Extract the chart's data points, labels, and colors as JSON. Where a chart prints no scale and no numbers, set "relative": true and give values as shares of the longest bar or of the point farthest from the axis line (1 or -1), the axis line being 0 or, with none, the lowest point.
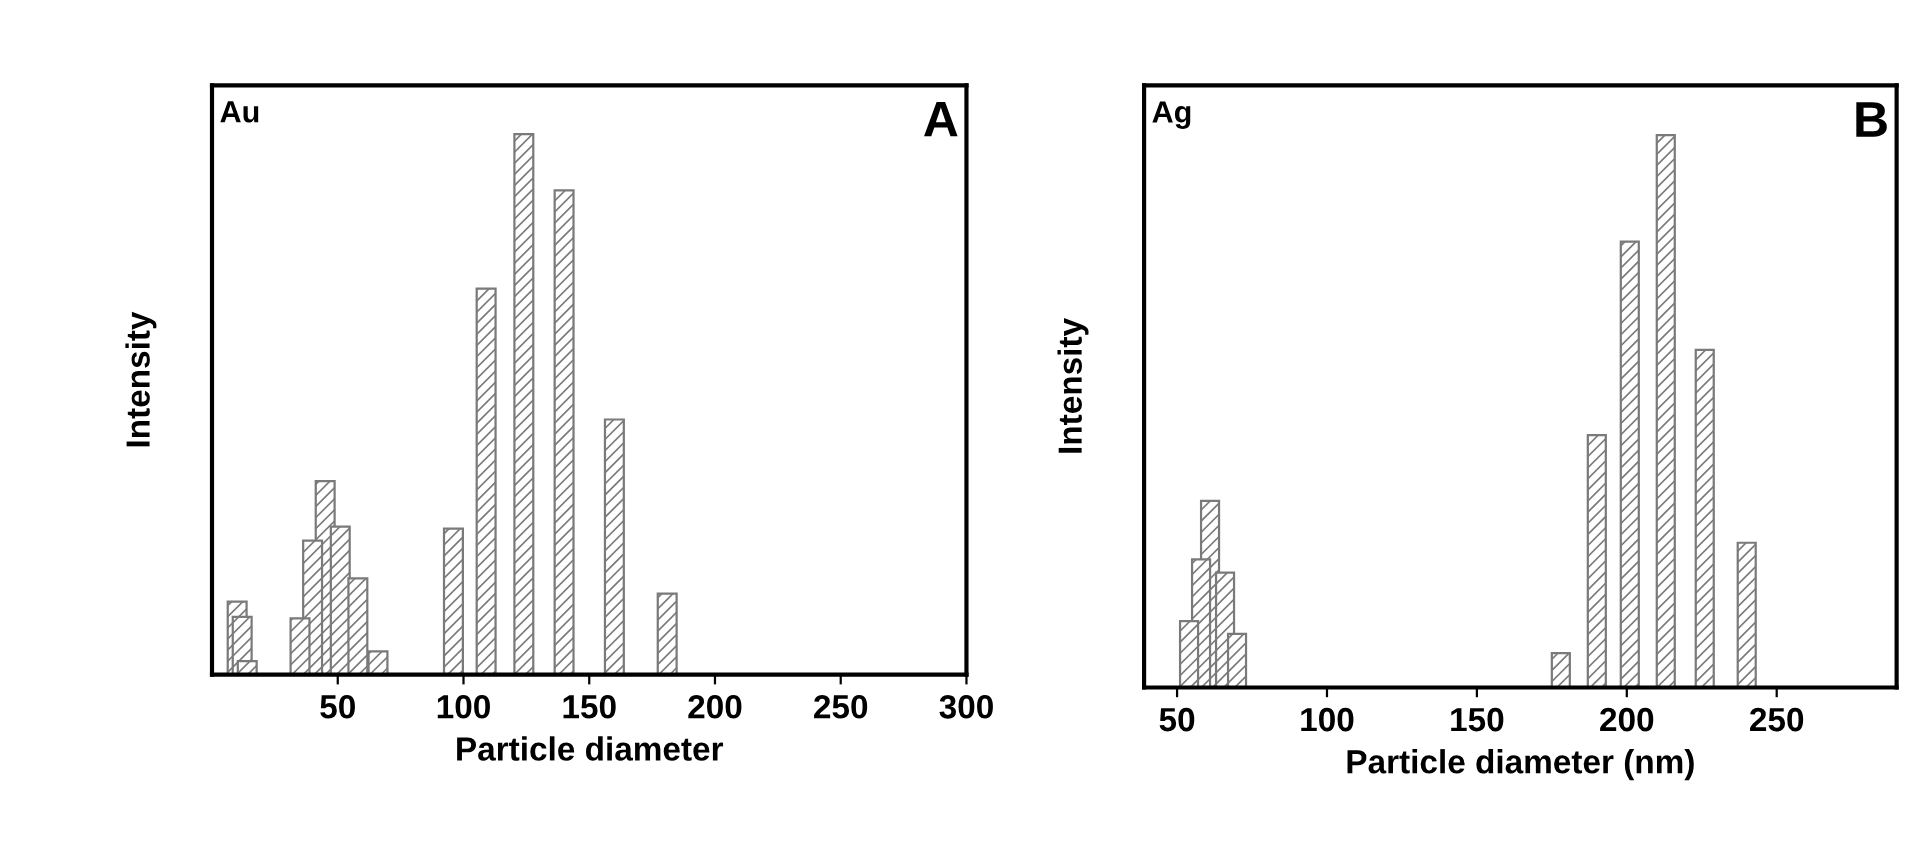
{
  "chart_data": [
    {
      "type": "bar",
      "relative": true,
      "xlabel": "Particle diameter",
      "ylabel": "Intensity",
      "annotations": [
        "Au",
        "A"
      ],
      "xlim": [
        0,
        300
      ],
      "xticks": [
        50,
        100,
        150,
        200,
        250,
        300
      ],
      "tick_labels": "x",
      "grid": false,
      "legend": false,
      "series": [
        {
          "color": "#7a7a7a",
          "x": [
            10,
            12,
            14,
            35,
            40,
            45,
            51,
            58,
            66,
            96,
            109,
            124,
            140,
            160,
            181
          ],
          "values": [
            0.135,
            0.107,
            0.025,
            0.104,
            0.248,
            0.358,
            0.274,
            0.178,
            0.043,
            0.27,
            0.714,
            1,
            0.896,
            0.472,
            0.15
          ]
        }
      ]
    },
    {
      "type": "bar",
      "relative": true,
      "xlabel": "Particle diameter (nm)",
      "ylabel": "Intensity",
      "annotations": [
        "Ag",
        "B"
      ],
      "xlim": [
        39,
        290
      ],
      "xticks": [
        50,
        100,
        150,
        200,
        250
      ],
      "tick_labels": "x",
      "grid": false,
      "legend": false,
      "series": [
        {
          "color": "#7a7a7a",
          "x": [
            54,
            58,
            61,
            66,
            70,
            178,
            190,
            201,
            213,
            226,
            240
          ],
          "values": [
            0.12,
            0.232,
            0.338,
            0.208,
            0.097,
            0.062,
            0.457,
            0.807,
            1,
            0.611,
            0.262
          ]
        }
      ]
    }
  ]
}
